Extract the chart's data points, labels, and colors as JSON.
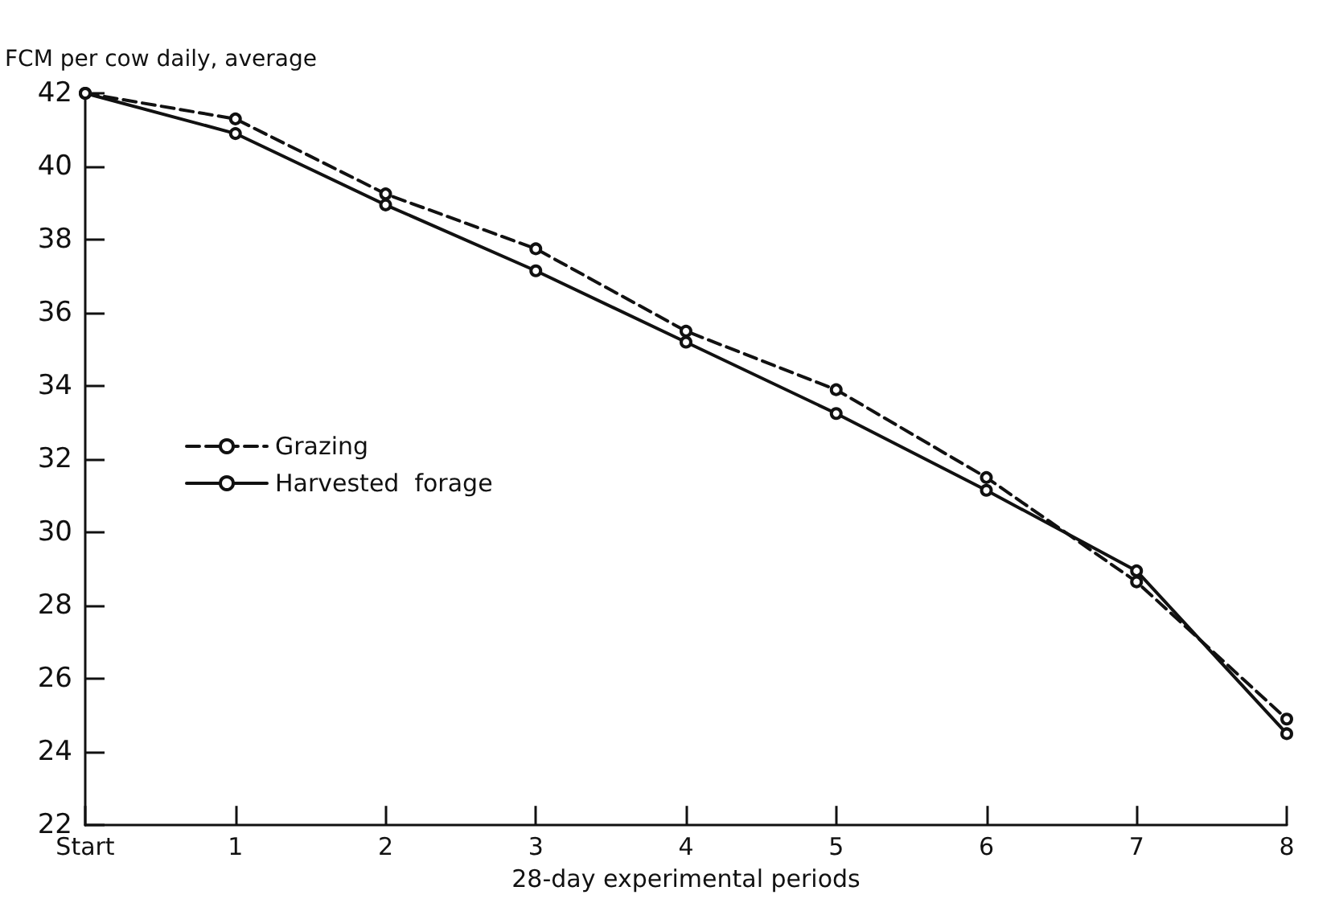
{
  "chart_data": {
    "type": "line",
    "xlabel": "28-day experimental periods",
    "ylabel": "FCM per cow daily, average",
    "categories": [
      "Start",
      "1",
      "2",
      "3",
      "4",
      "5",
      "6",
      "7",
      "8"
    ],
    "series": [
      {
        "name": "Grazing",
        "color": "#111111",
        "line_style": "dashed",
        "values": [
          42.0,
          41.3,
          39.25,
          37.75,
          35.5,
          33.9,
          31.5,
          28.65,
          24.9
        ]
      },
      {
        "name": "Harvested  forage",
        "color": "#111111",
        "line_style": "solid",
        "values": [
          42.0,
          40.9,
          38.95,
          37.15,
          35.2,
          33.25,
          31.15,
          28.95,
          24.5
        ]
      }
    ],
    "ylim": [
      22,
      42
    ],
    "yticks": [
      22,
      24,
      26,
      28,
      30,
      32,
      34,
      36,
      38,
      40,
      42
    ],
    "grid": false,
    "legend": "left",
    "marker": "circle"
  }
}
